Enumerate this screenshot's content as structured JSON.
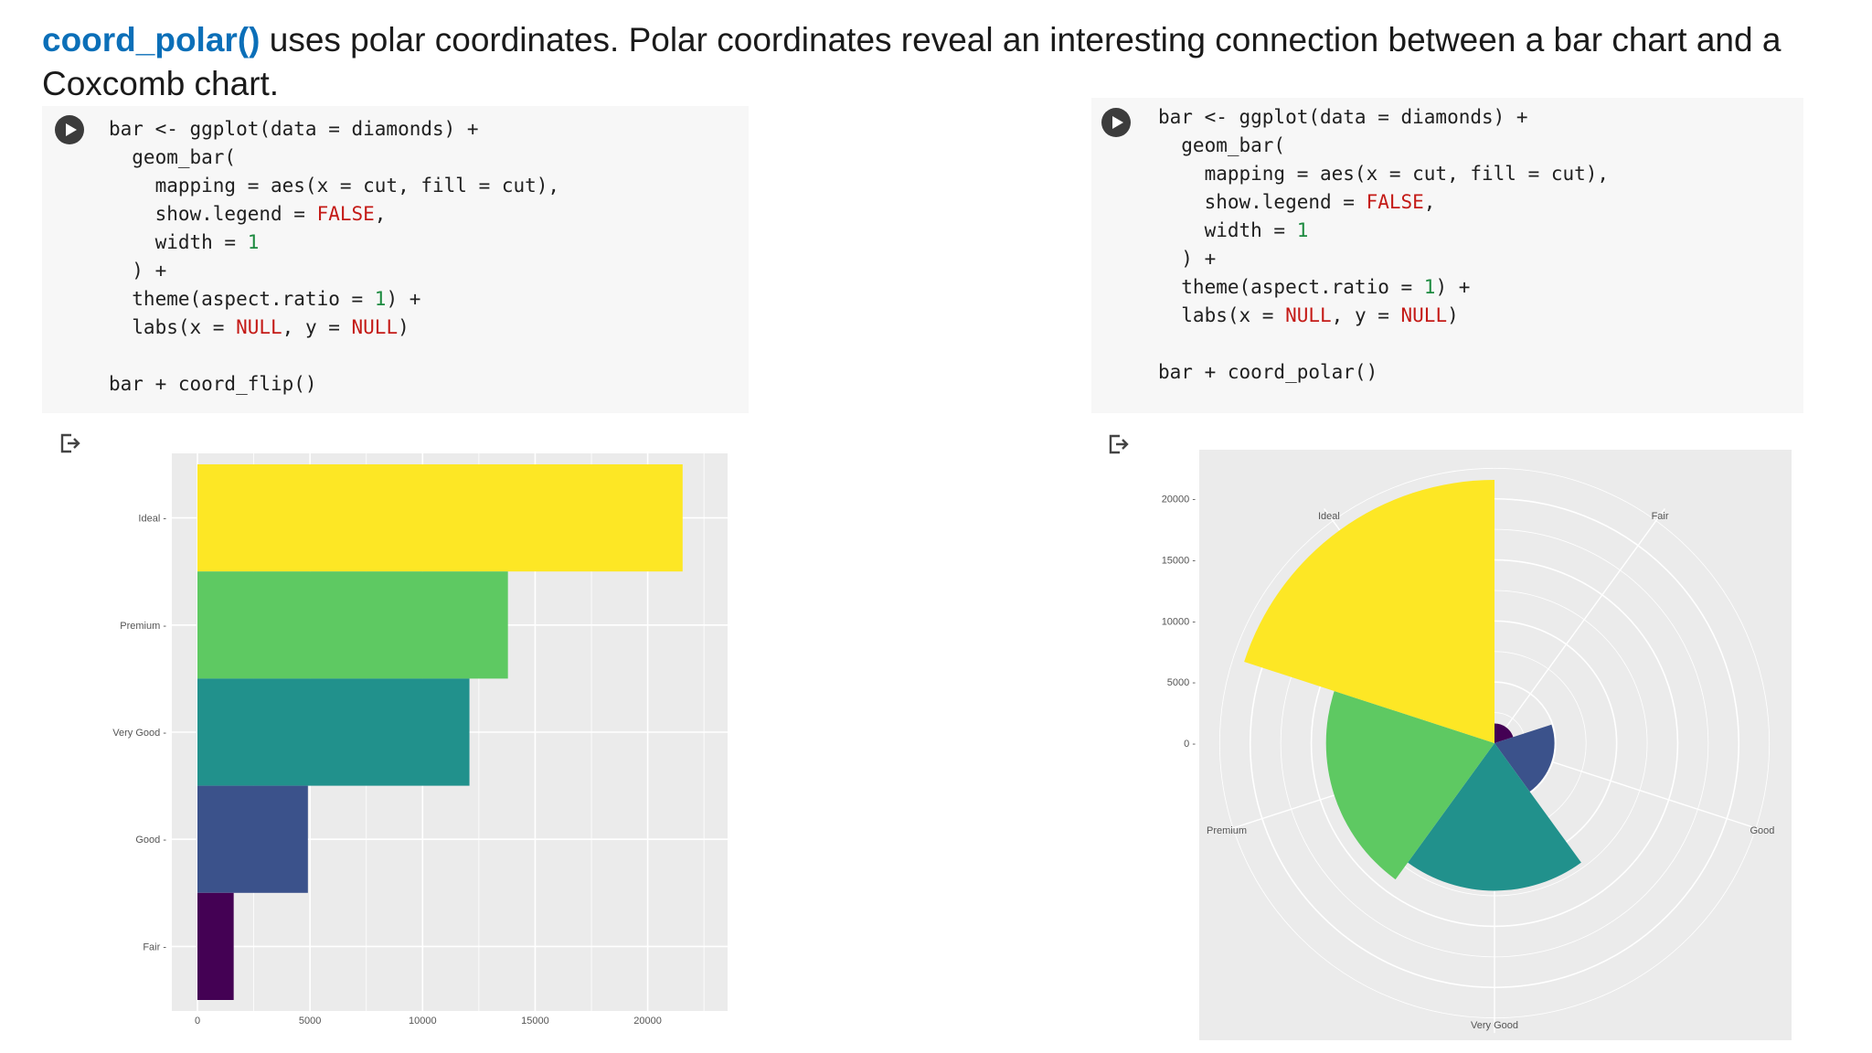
{
  "heading": {
    "function_name": "coord_polar()",
    "text": " uses polar coordinates. Polar coordinates reveal an interesting connection between a bar chart and a Coxcomb chart."
  },
  "cells": [
    {
      "lines": [
        "bar <- ggplot(data = diamonds) +",
        "  geom_bar(",
        "    mapping = aes(x = cut, fill = cut),",
        "    show.legend = FALSE,",
        "    width = 1",
        "  ) +",
        "  theme(aspect.ratio = 1) +",
        "  labs(x = NULL, y = NULL)",
        "",
        "bar + coord_flip()"
      ]
    },
    {
      "lines": [
        "bar <- ggplot(data = diamonds) +",
        "  geom_bar(",
        "    mapping = aes(x = cut, fill = cut),",
        "    show.legend = FALSE,",
        "    width = 1",
        "  ) +",
        "  theme(aspect.ratio = 1) +",
        "  labs(x = NULL, y = NULL)",
        "",
        "bar + coord_polar()"
      ]
    }
  ],
  "colors": {
    "Ideal": "#fde725",
    "Premium": "#5ec962",
    "Very Good": "#21918c",
    "Good": "#3b528b",
    "Fair": "#440154",
    "panel": "#ebebeb"
  },
  "chart_data": [
    {
      "type": "bar",
      "orientation": "horizontal",
      "categories": [
        "Ideal",
        "Premium",
        "Very Good",
        "Good",
        "Fair"
      ],
      "values": [
        21551,
        13791,
        12082,
        4906,
        1610
      ],
      "xlabel": "",
      "ylabel": "",
      "xticks": [
        "0",
        "5000",
        "10000",
        "15000",
        "20000"
      ],
      "xlim": [
        0,
        22600
      ],
      "grid": true
    },
    {
      "type": "pie",
      "variant": "coxcomb",
      "categories": [
        "Fair",
        "Good",
        "Very Good",
        "Premium",
        "Ideal"
      ],
      "values": [
        1610,
        4906,
        12082,
        13791,
        21551
      ],
      "radial_ticks": [
        "0",
        "5000",
        "10000",
        "15000",
        "20000"
      ],
      "rlim": [
        0,
        22600
      ],
      "grid": true
    }
  ]
}
